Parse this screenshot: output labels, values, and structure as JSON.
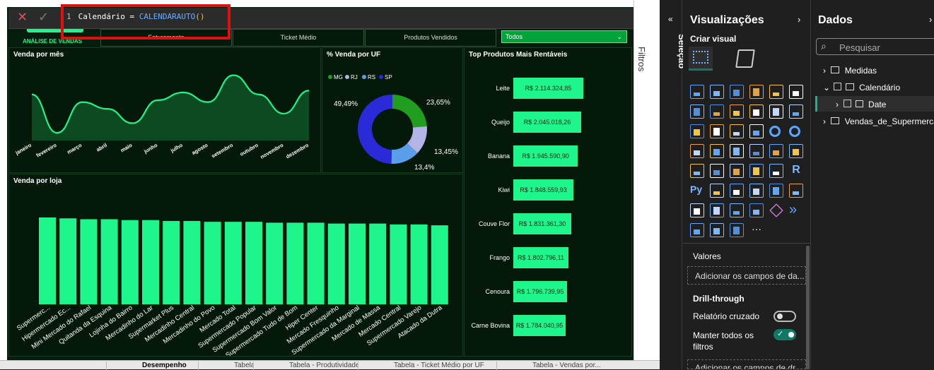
{
  "formula": {
    "line_no": "1",
    "lhs": "Calendário = ",
    "func": "CALENDARAUTO",
    "parens": "()"
  },
  "header": {
    "logo_sub": "ANÁLISE DE VENDAS",
    "tabs": [
      "Faturamento",
      "Ticket Médio",
      "Produtos Vendidos"
    ],
    "dropdown_value": "Todos"
  },
  "cards": {
    "venda_mes": "Venda por mês",
    "venda_uf": "% Venda por UF",
    "top_produtos": "Top Produtos Mais Rentáveis",
    "venda_loja": "Venda por loja"
  },
  "colors": {
    "accent": "#1ef58a",
    "mg": "#1f9e1f",
    "rj": "#b3b3e6",
    "rs": "#5a9de8",
    "sp": "#2a2ad8"
  },
  "chart_data": [
    {
      "type": "area",
      "title": "Venda por mês",
      "categories": [
        "janeiro",
        "fevereiro",
        "março",
        "abril",
        "maio",
        "junho",
        "julho",
        "agosto",
        "setembro",
        "outubro",
        "novembro",
        "dezembro"
      ],
      "values": [
        78,
        38,
        70,
        63,
        48,
        72,
        80,
        70,
        98,
        78,
        58,
        82
      ],
      "ylim": [
        30,
        105
      ]
    },
    {
      "type": "pie",
      "title": "% Venda por UF",
      "legend": [
        "MG",
        "RJ",
        "RS",
        "SP"
      ],
      "values": [
        23.65,
        13.45,
        13.4,
        49.49
      ],
      "labels": [
        "23,65%",
        "13,45%",
        "13,4%",
        "49,49%"
      ]
    },
    {
      "type": "bar",
      "title": "Top Produtos Mais Rentáveis",
      "categories": [
        "Leite",
        "Queijo",
        "Banana",
        "Kiwi",
        "Couve Flor",
        "Frango",
        "Cenoura",
        "Carne Bovina"
      ],
      "values": [
        2114324.85,
        2045018.26,
        1945590.9,
        1848559.93,
        1831361.3,
        1802796.11,
        1796739.95,
        1784040.95
      ],
      "labels": [
        "R$ 2.114.324,85",
        "R$ 2.045.018,26",
        "R$ 1.945.590,90",
        "R$ 1.848.559,93",
        "R$ 1.831.361,30",
        "R$ 1.802.796,11",
        "R$ 1.796.739,95",
        "R$ 1.784.040,95"
      ]
    },
    {
      "type": "bar",
      "title": "Venda por loja",
      "categories": [
        "Supermerc...",
        "Hipermercado Ec...",
        "Mini Mercado do Rafael",
        "Quitanda da Esquina",
        "Lojinha do Bairro",
        "Mercadinho do Lar",
        "Supermarket Plus",
        "Mercadinho Central",
        "Mercadinho do Povo",
        "Mercado Total",
        "Supermercado Popular",
        "Supermercado Bom Valor",
        "Supermercado Tudo de Bom",
        "Hiper Center",
        "Mercado Fresquinho",
        "Supermercado da Marginal",
        "Mercado de Massa",
        "Mercado Central",
        "Supermercado Varejo",
        "Atacado da Dutra"
      ],
      "values": [
        100,
        99,
        98,
        98,
        97,
        97,
        96,
        96,
        95,
        95,
        95,
        94,
        94,
        94,
        93,
        93,
        93,
        92,
        92,
        91
      ]
    }
  ],
  "filters_label": "Filtros",
  "selecao_label": "Seleção",
  "viz": {
    "title": "Visualizações",
    "criar_visual": "Criar visual",
    "valores": "Valores",
    "valores_placeholder": "Adicionar os campos de da...",
    "drill_title": "Drill-through",
    "relatorio_cruzado": "Relatório cruzado",
    "manter_filtros_1": "Manter todos os",
    "manter_filtros_2": "filtros",
    "drill_placeholder": "Adicionar os campos de dr...",
    "more": "···",
    "icons": [
      [
        "stacked-bar-icon",
        "clustered-column-icon",
        "clustered-bar-icon",
        "stacked-column-icon",
        "100-bar-icon",
        "100-column-icon"
      ],
      [
        "line-chart-icon",
        "area-chart-icon",
        "line-area-icon",
        "ribbon-icon",
        "combo-icon",
        "line-column-icon"
      ],
      [
        "waterfall-icon",
        "funnel-bar-icon",
        "funnel-icon",
        "scatter-icon",
        "pie-icon",
        "donut-icon"
      ],
      [
        "treemap-icon",
        "map-icon",
        "filled-map-icon",
        "azure-map-icon",
        "gauge-icon",
        "card-icon"
      ],
      [
        "multirow-card-icon",
        "kpi-icon",
        "slicer-icon",
        "table-icon",
        "matrix-icon",
        "r-visual-icon"
      ],
      [
        "python-visual-icon",
        "key-influencers-icon",
        "decomposition-tree-icon",
        "qa-icon",
        "narrative-icon",
        "trophy-icon"
      ],
      [
        "paginated-icon",
        "metrics-icon",
        "power-automate-icon",
        "apps-icon",
        "diamond-icon",
        "arrow-chevrons-icon"
      ],
      [
        "custom-visual-1-icon",
        "custom-visual-2-icon",
        "custom-visual-3-icon",
        "more-icon"
      ]
    ]
  },
  "dados": {
    "title": "Dados",
    "search_placeholder": "Pesquisar",
    "tree": [
      {
        "label": "Medidas",
        "level": 0
      },
      {
        "label": "Calendário",
        "level": 0
      },
      {
        "label": "Date",
        "level": 1
      },
      {
        "label": "Vendas_de_Supermerca",
        "level": 0
      }
    ]
  },
  "bottom": {
    "tabs": [
      "Desempenho",
      "Tabela",
      "Tabela - Produtividade",
      "Tabela - Ticket Médio por UF",
      "Tabela - Vendas por..."
    ]
  }
}
